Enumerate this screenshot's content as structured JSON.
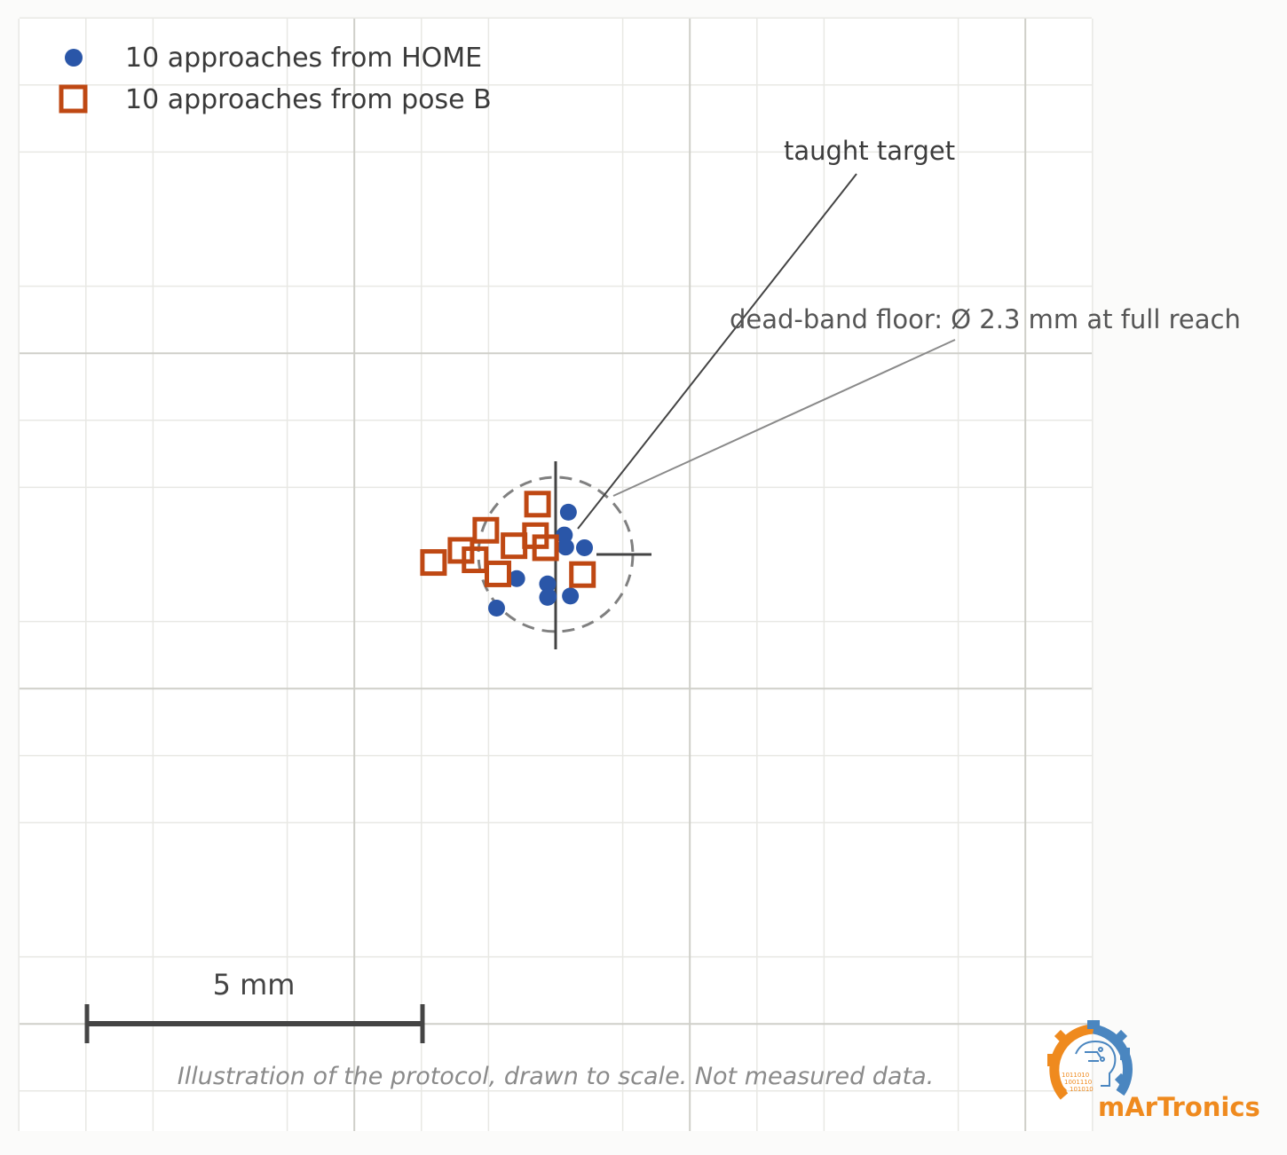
{
  "legend": {
    "home_label": "10 approaches from HOME",
    "pose_b_label": "10 approaches from pose B"
  },
  "annotations": {
    "target_label": "taught target",
    "deadband_label": "dead-band floor: Ø 2.3 mm at full reach"
  },
  "scale_bar": {
    "label": "5 mm",
    "length_mm": 5
  },
  "caption": "Illustration of the protocol, drawn to scale. Not measured data.",
  "logo": {
    "text": "mArTronics",
    "bits_lines": [
      "1011010",
      "1001110",
      "101010"
    ]
  },
  "colors": {
    "home": "#2a56a8",
    "pose_b": "#bf4813",
    "grid_minor": "#e8e8e4",
    "grid_major": "#cfcfc9",
    "crosshair": "#444444",
    "logo_orange": "#ef8a1e",
    "logo_blue": "#4a86c0"
  },
  "chart_data": {
    "type": "scatter",
    "deadband_diameter_mm": 2.3,
    "series": [
      {
        "name": "10 approaches from HOME",
        "marker": "circle",
        "points": [
          [
            0.19,
            0.63
          ],
          [
            0.13,
            0.29
          ],
          [
            0.15,
            0.11
          ],
          [
            0.43,
            0.1
          ],
          [
            -0.58,
            -0.36
          ],
          [
            -0.12,
            -0.44
          ],
          [
            -0.11,
            -0.63
          ],
          [
            0.22,
            -0.62
          ],
          [
            -0.88,
            -0.8
          ],
          [
            -0.12,
            -0.64
          ]
        ]
      },
      {
        "name": "10 approaches from pose B",
        "marker": "square",
        "points": [
          [
            -0.27,
            0.75
          ],
          [
            -1.04,
            0.36
          ],
          [
            -0.3,
            0.28
          ],
          [
            -0.62,
            0.13
          ],
          [
            -1.41,
            0.06
          ],
          [
            -0.15,
            0.1
          ],
          [
            -1.2,
            -0.08
          ],
          [
            -0.86,
            -0.29
          ],
          [
            -1.82,
            -0.12
          ],
          [
            0.4,
            -0.3
          ]
        ]
      }
    ]
  }
}
